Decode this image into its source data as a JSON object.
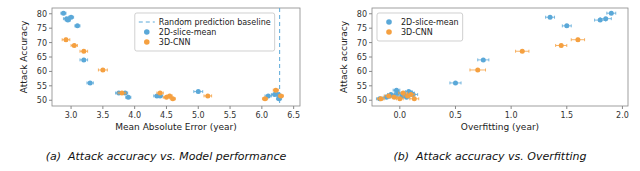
{
  "chart_data": [
    {
      "type": "scatter",
      "title": "(a)  Attack accuracy vs. Model performance",
      "xlabel": "Mean Absolute Error (year)",
      "ylabel": "Attack Accuracy",
      "xlim": [
        2.7,
        6.6
      ],
      "ylim": [
        48,
        82
      ],
      "xticks": [
        {
          "value": 3.0,
          "label": "3.0"
        },
        {
          "value": 3.5,
          "label": "3.5"
        },
        {
          "value": 4.0,
          "label": "4.0"
        },
        {
          "value": 4.5,
          "label": "4.5"
        },
        {
          "value": 5.0,
          "label": "5.0"
        },
        {
          "value": 5.5,
          "label": "5.5"
        },
        {
          "value": 6.0,
          "label": "6.0"
        },
        {
          "value": 6.5,
          "label": "6.5"
        }
      ],
      "yticks": [
        50,
        55,
        60,
        65,
        70,
        75,
        80
      ],
      "grid": false,
      "legend": "upper right",
      "series": [
        {
          "name": "Random prediction baseline",
          "type": "vline",
          "color": "#5aa8d8",
          "line_style": "dashed",
          "x": 6.28
        },
        {
          "name": "2D-slice-mean",
          "color": "#5aa8d8",
          "marker": "circle",
          "x": [
            2.88,
            2.93,
            2.95,
            3.0,
            3.1,
            3.2,
            3.3,
            3.75,
            3.85,
            3.9,
            4.35,
            4.4,
            5.0,
            6.1,
            6.2,
            6.25,
            6.27
          ],
          "values": [
            80.2,
            78.3,
            77.8,
            78.8,
            75.8,
            64.0,
            56.0,
            52.5,
            52.5,
            51.0,
            51.5,
            51.5,
            53.0,
            51.5,
            52.0,
            52.0,
            50.5
          ],
          "xerr": [
            0.04,
            0.05,
            0.04,
            0.04,
            0.04,
            0.06,
            0.05,
            0.05,
            0.04,
            0.04,
            0.05,
            0.04,
            0.07,
            0.05,
            0.05,
            0.04,
            0.04
          ],
          "yerr": [
            0.4,
            0.3,
            0.4,
            0.3,
            0.4,
            0.5,
            0.4,
            0.3,
            0.3,
            0.3,
            0.3,
            0.3,
            0.4,
            0.3,
            0.4,
            0.4,
            0.3
          ]
        },
        {
          "name": "3D-CNN",
          "color": "#f5a040",
          "marker": "circle",
          "x": [
            2.92,
            3.05,
            3.2,
            3.5,
            3.8,
            4.4,
            4.5,
            4.55,
            4.6,
            5.15,
            6.05,
            6.22,
            6.3
          ],
          "values": [
            71.0,
            69.0,
            67.0,
            60.5,
            52.5,
            52.5,
            51.0,
            51.5,
            50.5,
            51.5,
            50.5,
            53.5,
            51.5
          ],
          "xerr": [
            0.06,
            0.05,
            0.06,
            0.07,
            0.06,
            0.05,
            0.05,
            0.04,
            0.04,
            0.06,
            0.04,
            0.04,
            0.04
          ],
          "yerr": [
            0.5,
            0.4,
            0.4,
            0.4,
            0.3,
            0.3,
            0.3,
            0.3,
            0.3,
            0.3,
            0.3,
            0.4,
            0.3
          ]
        }
      ]
    },
    {
      "type": "scatter",
      "title": "(b)  Attack accuracy vs. Overfitting",
      "xlabel": "Overfitting (year)",
      "ylabel": "Attack accuracy",
      "xlim": [
        -0.25,
        2.05
      ],
      "ylim": [
        48,
        82
      ],
      "xticks": [
        {
          "value": 0.0,
          "label": "0.0"
        },
        {
          "value": 0.5,
          "label": "0.5"
        },
        {
          "value": 1.0,
          "label": "1.0"
        },
        {
          "value": 1.5,
          "label": "1.5"
        },
        {
          "value": 2.0,
          "label": "2.0"
        }
      ],
      "yticks": [
        50,
        55,
        60,
        65,
        70,
        75,
        80
      ],
      "grid": false,
      "legend": "upper left",
      "series": [
        {
          "name": "2D-slice-mean",
          "color": "#5aa8d8",
          "marker": "circle",
          "x": [
            -0.18,
            -0.12,
            -0.1,
            -0.08,
            -0.05,
            -0.03,
            -0.02,
            0.02,
            0.04,
            0.06,
            0.08,
            0.1,
            0.12,
            0.5,
            0.75,
            1.35,
            1.5,
            1.8,
            1.85,
            1.9
          ],
          "values": [
            50.5,
            51.0,
            51.5,
            52.0,
            51.5,
            53.5,
            52.5,
            51.5,
            52.0,
            51.0,
            53.0,
            52.5,
            52.0,
            56.0,
            64.0,
            78.8,
            75.8,
            77.8,
            78.3,
            80.2
          ],
          "xerr": [
            0.03,
            0.03,
            0.03,
            0.03,
            0.03,
            0.03,
            0.03,
            0.03,
            0.03,
            0.03,
            0.03,
            0.03,
            0.04,
            0.05,
            0.05,
            0.04,
            0.04,
            0.05,
            0.05,
            0.04
          ],
          "yerr": [
            0.3,
            0.3,
            0.3,
            0.3,
            0.3,
            0.3,
            0.3,
            0.3,
            0.3,
            0.3,
            0.3,
            0.3,
            0.3,
            0.4,
            0.4,
            0.3,
            0.4,
            0.4,
            0.3,
            0.4
          ]
        },
        {
          "name": "3D-CNN",
          "color": "#f5a040",
          "marker": "circle",
          "x": [
            -0.17,
            -0.1,
            -0.05,
            0.0,
            0.03,
            0.07,
            0.1,
            0.13,
            0.7,
            1.1,
            1.45,
            1.6
          ],
          "values": [
            50.5,
            51.5,
            51.0,
            50.5,
            52.5,
            51.5,
            52.0,
            50.5,
            60.5,
            67.0,
            69.0,
            71.0
          ],
          "xerr": [
            0.03,
            0.04,
            0.03,
            0.03,
            0.04,
            0.04,
            0.03,
            0.04,
            0.07,
            0.06,
            0.05,
            0.06
          ],
          "yerr": [
            0.3,
            0.3,
            0.3,
            0.3,
            0.3,
            0.3,
            0.3,
            0.3,
            0.4,
            0.4,
            0.4,
            0.5
          ]
        }
      ]
    }
  ]
}
